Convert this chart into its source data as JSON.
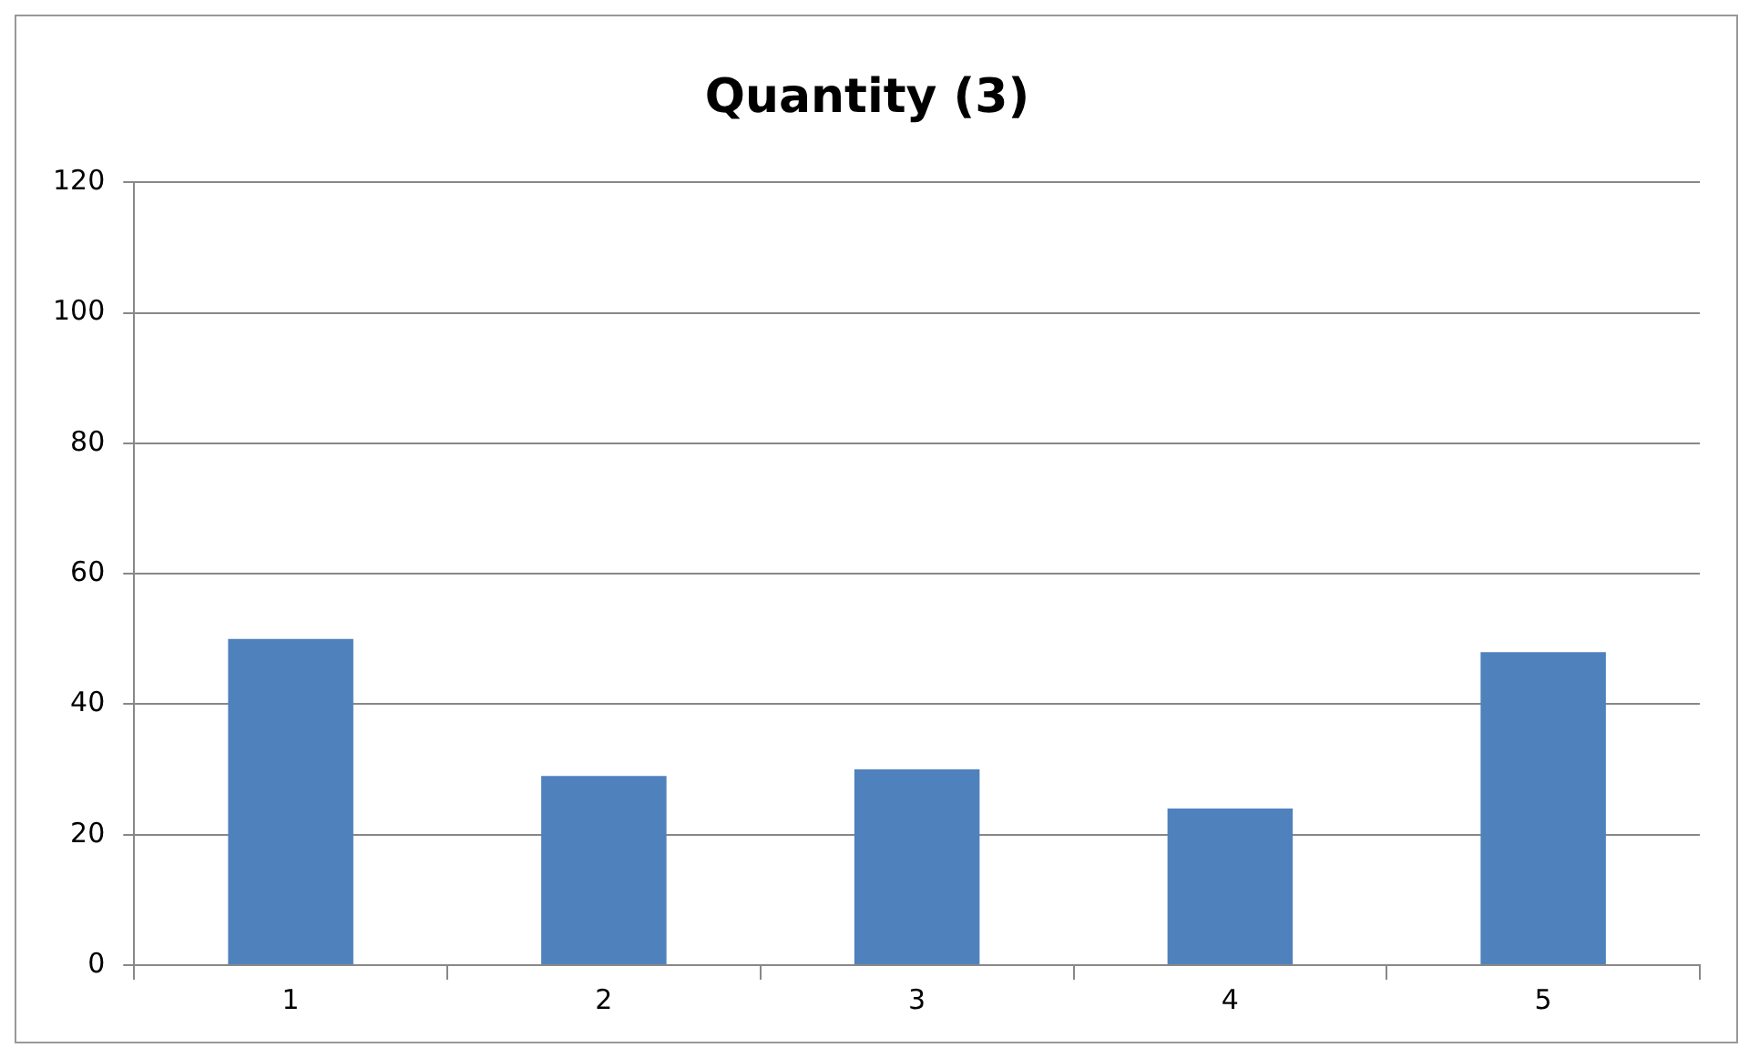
{
  "chart_data": {
    "type": "bar",
    "title": "Quantity (3)",
    "categories": [
      "1",
      "2",
      "3",
      "4",
      "5"
    ],
    "values": [
      50,
      29,
      30,
      24,
      48
    ],
    "color": "#4f81bd",
    "ylim": [
      0,
      120
    ],
    "yticks": [
      0,
      20,
      40,
      60,
      80,
      100,
      120
    ],
    "grid": "y",
    "legend": false
  }
}
